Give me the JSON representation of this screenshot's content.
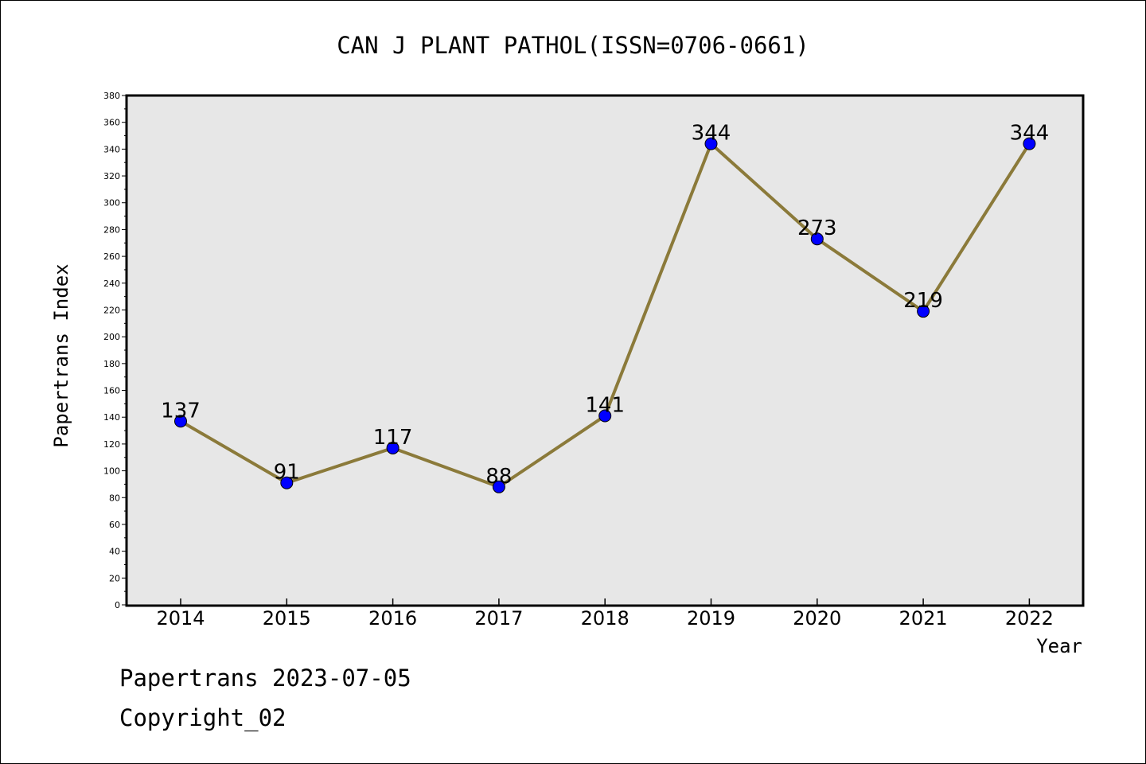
{
  "chart_data": {
    "type": "line",
    "title": "CAN J PLANT PATHOL(ISSN=0706-0661)",
    "xlabel": "Year",
    "ylabel": "Papertrans Index",
    "categories": [
      "2014",
      "2015",
      "2016",
      "2017",
      "2018",
      "2019",
      "2020",
      "2021",
      "2022"
    ],
    "series": [
      {
        "values": [
          137,
          91,
          117,
          88,
          141,
          344,
          273,
          219,
          344
        ]
      }
    ],
    "ylim": [
      0,
      380
    ],
    "ytick_step": 20,
    "grid": false,
    "data_labels": true,
    "colors": {
      "line": "#8b7a3a",
      "marker": "#0000ff",
      "plot_background": "#e7e7e7"
    }
  },
  "footer": {
    "line1": "Papertrans 2023-07-05",
    "line2": "Copyright_02"
  }
}
